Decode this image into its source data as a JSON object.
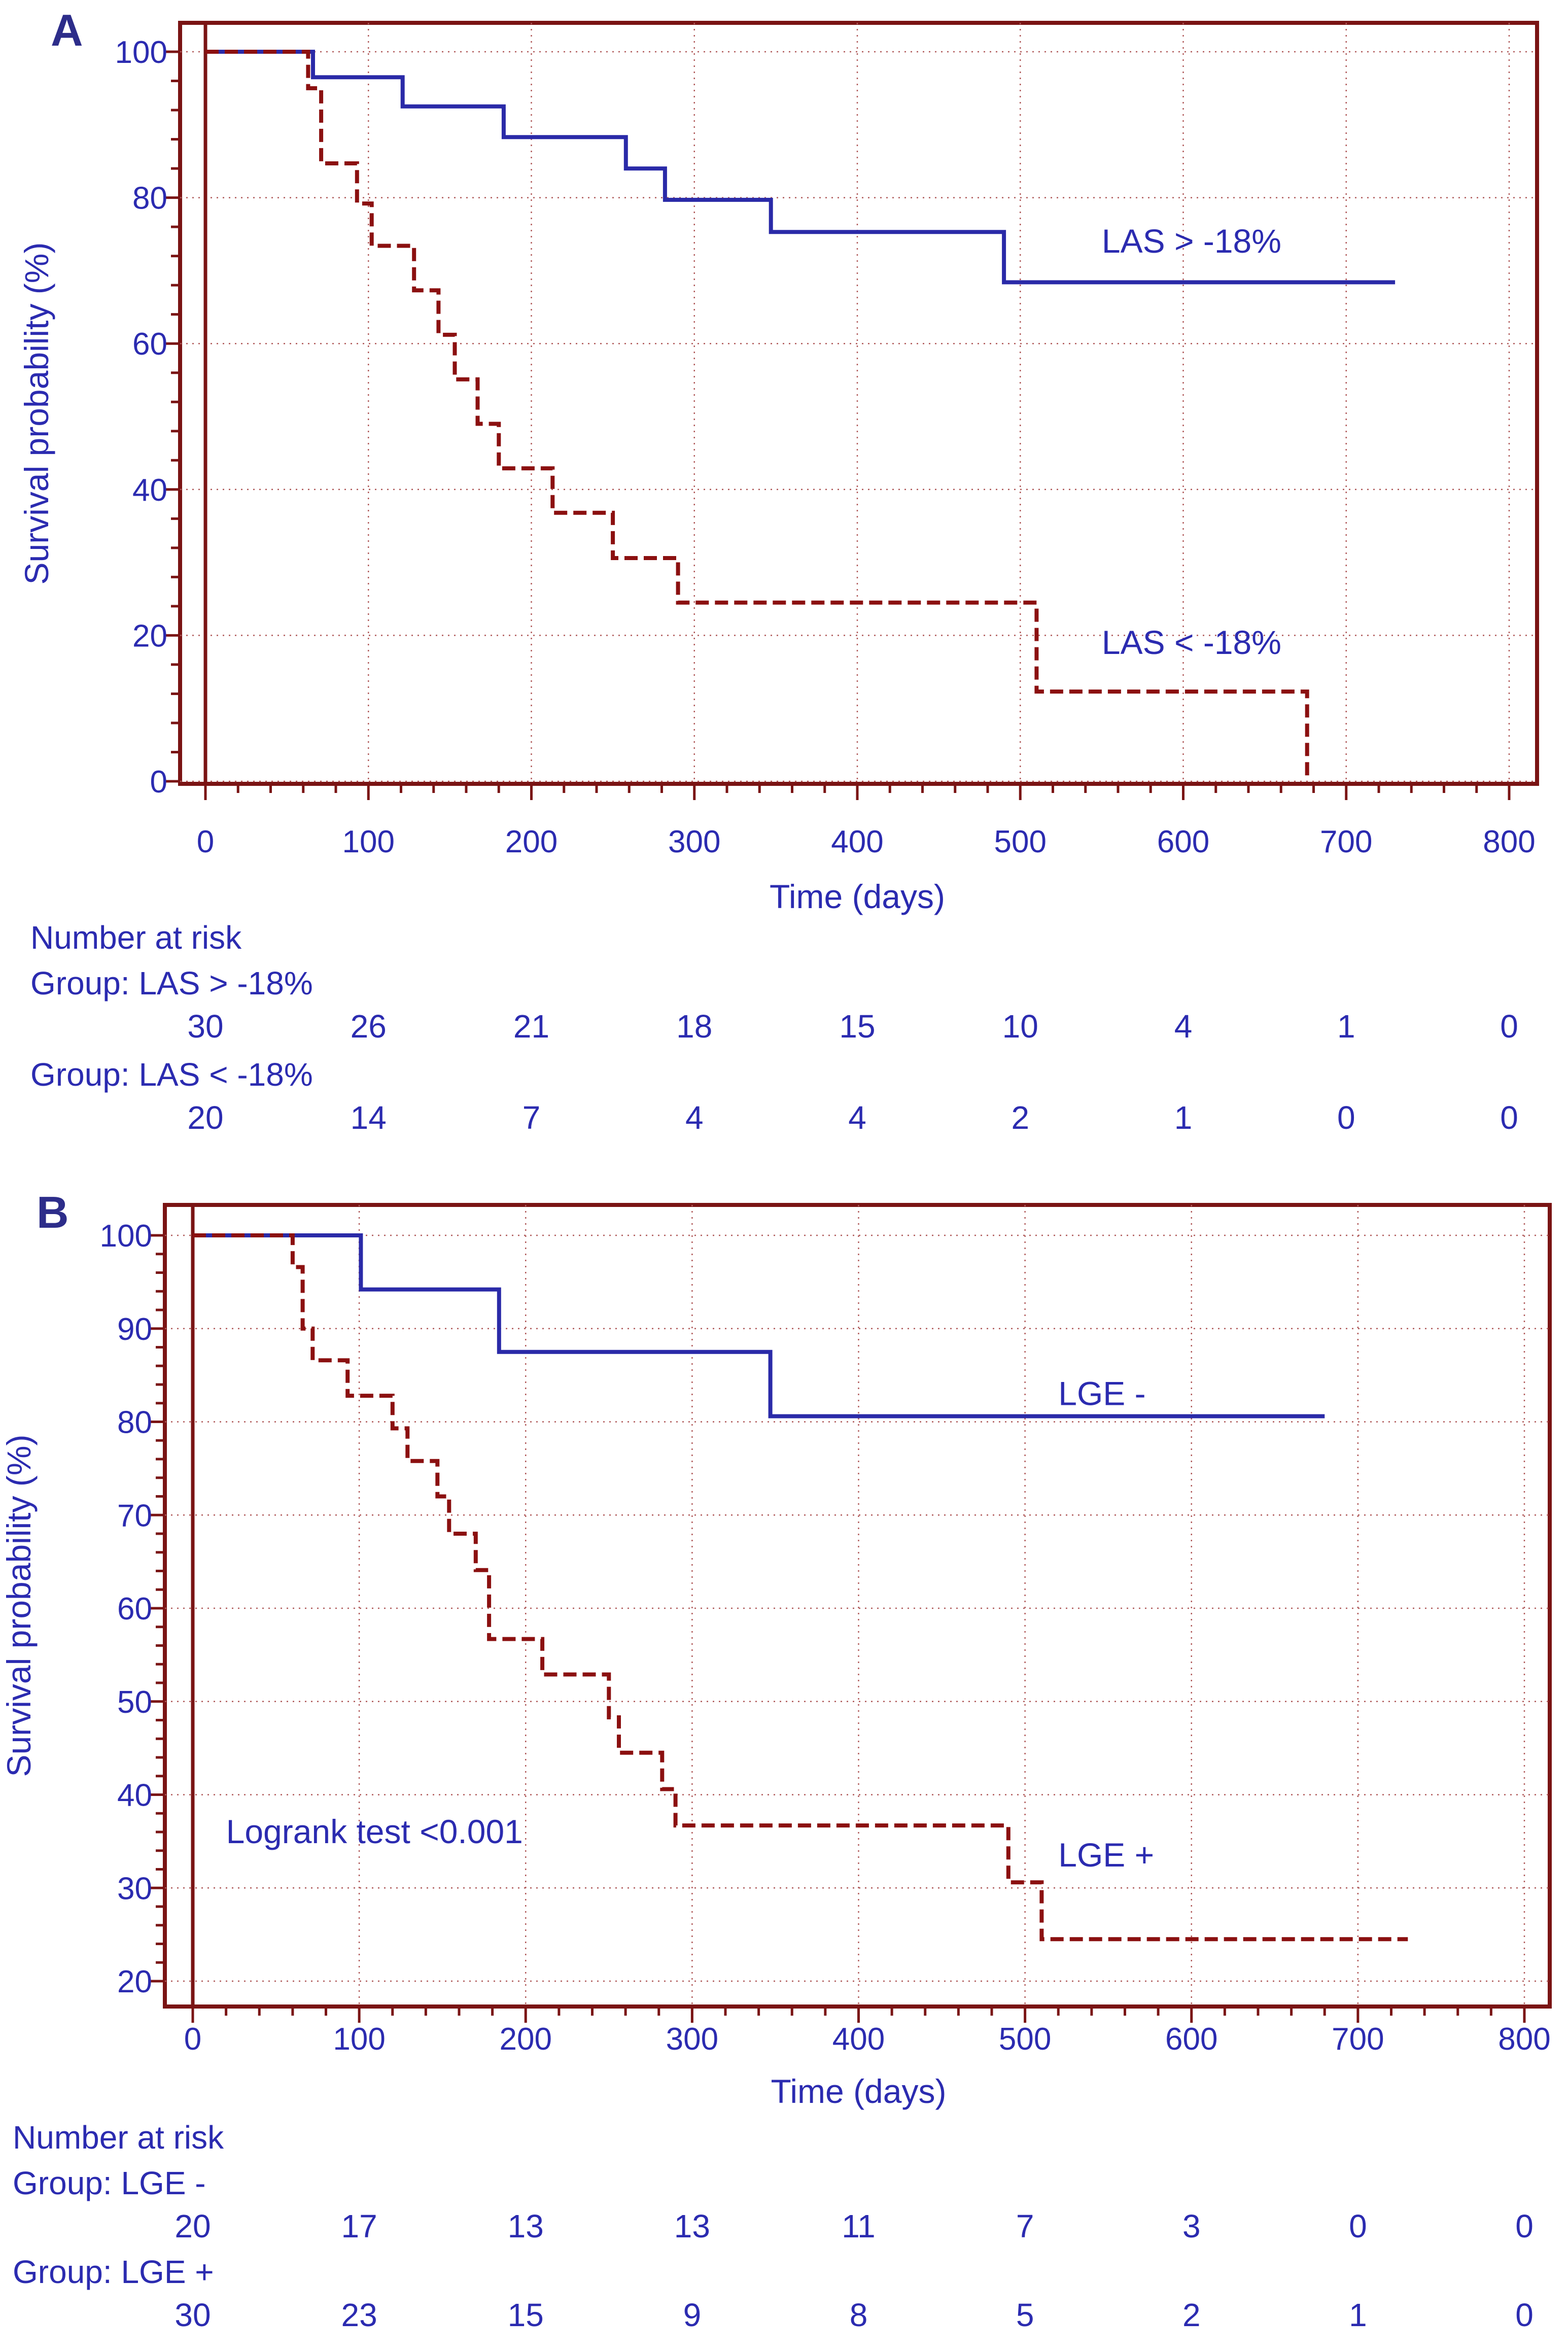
{
  "chart_data": [
    {
      "type": "line",
      "subtype": "kaplan-meier",
      "panel_label": "A",
      "xlabel": "Time (days)",
      "ylabel": "Survival probability (%)",
      "xlim": [
        0,
        800
      ],
      "ylim": [
        0,
        100
      ],
      "x_ticks": [
        0,
        100,
        200,
        300,
        400,
        500,
        600,
        700,
        800
      ],
      "y_ticks": [
        0,
        20,
        40,
        60,
        80,
        100
      ],
      "grid": true,
      "series": [
        {
          "name": "LAS > -18%",
          "label": "LAS > -18%",
          "label_position": [
            550,
            74
          ],
          "style": "solid",
          "color": "#2a2aa8",
          "x": [
            0,
            66,
            66,
            121,
            121,
            183,
            183,
            258,
            258,
            282,
            282,
            347,
            347,
            490,
            490,
            730
          ],
          "y": [
            100,
            100,
            96.5,
            96.5,
            92.5,
            92.5,
            88.3,
            88.3,
            84,
            84,
            79.7,
            79.7,
            75.3,
            75.3,
            68.4,
            68.4
          ]
        },
        {
          "name": "LAS < -18%",
          "label": "LAS < -18%",
          "label_position": [
            550,
            19
          ],
          "style": "dashed",
          "color": "#8b1010",
          "x": [
            0,
            63,
            63,
            71,
            71,
            93,
            93,
            102,
            102,
            128,
            128,
            143,
            143,
            153,
            153,
            167,
            167,
            180,
            180,
            213,
            213,
            250,
            250,
            290,
            290,
            510,
            510,
            672,
            672,
            676,
            676
          ],
          "y": [
            100,
            100,
            95,
            95,
            84.7,
            84.7,
            79.2,
            79.2,
            73.4,
            73.4,
            67.3,
            67.3,
            61.2,
            61.2,
            55.1,
            55.1,
            49,
            49,
            42.9,
            42.9,
            36.8,
            36.8,
            30.6,
            30.6,
            24.5,
            24.5,
            12.3,
            12.3,
            12.3,
            12.3,
            0
          ]
        }
      ],
      "risk_table": {
        "header": "Number at risk",
        "times": [
          0,
          100,
          200,
          300,
          400,
          500,
          600,
          700,
          800
        ],
        "groups": [
          {
            "label": "Group: LAS > -18%",
            "counts": [
              "30",
              "26",
              "21",
              "18",
              "15",
              "10",
              "4",
              "1",
              "0"
            ]
          },
          {
            "label": "Group: LAS < -18%",
            "counts": [
              "20",
              "14",
              "7",
              "4",
              "4",
              "2",
              "1",
              "0",
              "0"
            ]
          }
        ]
      }
    },
    {
      "type": "line",
      "subtype": "kaplan-meier",
      "panel_label": "B",
      "xlabel": "Time (days)",
      "ylabel": "Survival probability (%)",
      "xlim": [
        0,
        800
      ],
      "ylim": [
        20,
        100
      ],
      "x_ticks": [
        0,
        100,
        200,
        300,
        400,
        500,
        600,
        700,
        800
      ],
      "y_ticks": [
        20,
        30,
        40,
        50,
        60,
        70,
        80,
        90,
        100
      ],
      "grid": true,
      "annotation": {
        "text": "Logrank test <0.001",
        "x": 20,
        "y": 36
      },
      "series": [
        {
          "name": "LGE -",
          "label": "LGE -",
          "label_position": [
            520,
            83
          ],
          "style": "solid",
          "color": "#2a2aa8",
          "x": [
            0,
            101,
            101,
            184,
            184,
            347,
            347,
            680
          ],
          "y": [
            100,
            100,
            94.2,
            94.2,
            87.5,
            87.5,
            80.6,
            80.6
          ]
        },
        {
          "name": "LGE +",
          "label": "LGE +",
          "label_position": [
            520,
            33.5
          ],
          "style": "dashed",
          "color": "#8b1010",
          "x": [
            0,
            60,
            60,
            66,
            66,
            72,
            72,
            93,
            93,
            120,
            120,
            129,
            129,
            147,
            147,
            154,
            154,
            170,
            170,
            178,
            178,
            210,
            210,
            250,
            250,
            256,
            256,
            282,
            282,
            290,
            290,
            490,
            490,
            502,
            502,
            510,
            510,
            730
          ],
          "y": [
            100,
            100,
            96.6,
            96.6,
            90,
            90,
            86.6,
            86.6,
            82.8,
            82.8,
            79.3,
            79.3,
            75.8,
            75.8,
            72,
            72,
            68,
            68,
            64.1,
            64.1,
            56.7,
            56.7,
            52.9,
            52.9,
            48.3,
            48.3,
            44.5,
            44.5,
            40.6,
            40.6,
            36.7,
            36.7,
            30.6,
            30.6,
            30.6,
            30.6,
            24.5,
            24.5
          ]
        }
      ],
      "risk_table": {
        "header": "Number at risk",
        "times": [
          0,
          100,
          200,
          300,
          400,
          500,
          600,
          700,
          800
        ],
        "groups": [
          {
            "label": "Group: LGE -",
            "counts": [
              "20",
              "17",
              "13",
              "13",
              "11",
              "7",
              "3",
              "0",
              "0"
            ]
          },
          {
            "label": "Group: LGE +",
            "counts": [
              "30",
              "23",
              "15",
              "9",
              "8",
              "5",
              "2",
              "1",
              "0"
            ]
          }
        ]
      }
    }
  ]
}
